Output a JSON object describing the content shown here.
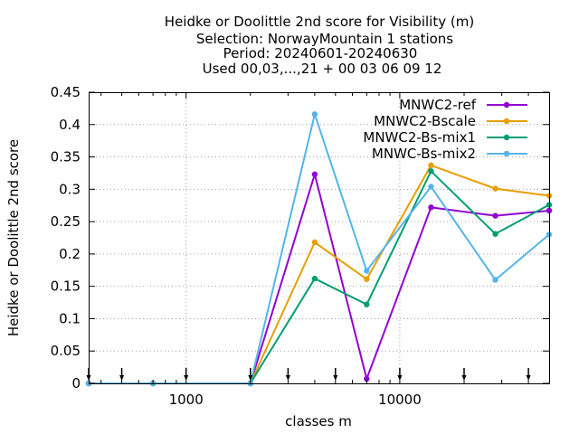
{
  "chart_data": {
    "type": "line",
    "title_lines": [
      "Heidke or Doolittle 2nd score  for Visibility (m)",
      "Selection: NorwayMountain      1 stations",
      "Period: 20240601-20240630",
      "Used 00,03,...,21 + 00 03 06 09 12"
    ],
    "xlabel": "classes m",
    "ylabel": "Heidke or Doolittle 2nd score",
    "x_scale": "log",
    "xlim": [
      350,
      50000
    ],
    "ylim": [
      0,
      0.45
    ],
    "x_ticks": [
      {
        "value": 1000,
        "label": "1000"
      },
      {
        "value": 10000,
        "label": "10000"
      }
    ],
    "y_ticks": [
      {
        "value": 0,
        "label": "0"
      },
      {
        "value": 0.05,
        "label": "0.05"
      },
      {
        "value": 0.1,
        "label": "0.1"
      },
      {
        "value": 0.15,
        "label": "0.15"
      },
      {
        "value": 0.2,
        "label": "0.2"
      },
      {
        "value": 0.25,
        "label": "0.25"
      },
      {
        "value": 0.3,
        "label": "0.3"
      },
      {
        "value": 0.35,
        "label": "0.35"
      },
      {
        "value": 0.4,
        "label": "0.4"
      },
      {
        "value": 0.45,
        "label": "0.45"
      }
    ],
    "class_markers_x": [
      350,
      500,
      1000,
      2000,
      3000,
      5000,
      10000,
      20000,
      40000
    ],
    "x": [
      350,
      700,
      2000,
      4000,
      7000,
      14000,
      28000,
      50000
    ],
    "grid": true,
    "legend_position": "top-right",
    "series": [
      {
        "name": "MNWC2-ref",
        "color": "#9400d3",
        "values": [
          0,
          0,
          0,
          0.323,
          0.007,
          0.272,
          0.259,
          0.267
        ]
      },
      {
        "name": "MNWC2-Bscale",
        "color": "#e69f00",
        "values": [
          0,
          0,
          0,
          0.218,
          0.161,
          0.337,
          0.301,
          0.29
        ]
      },
      {
        "name": "MNWC2-Bs-mix1",
        "color": "#009e73",
        "values": [
          0,
          0,
          0,
          0.162,
          0.122,
          0.328,
          0.231,
          0.276
        ]
      },
      {
        "name": "MNWC-Bs-mix2",
        "color": "#56b4e9",
        "values": [
          0,
          0,
          0,
          0.416,
          0.174,
          0.304,
          0.16,
          0.23
        ]
      }
    ]
  }
}
